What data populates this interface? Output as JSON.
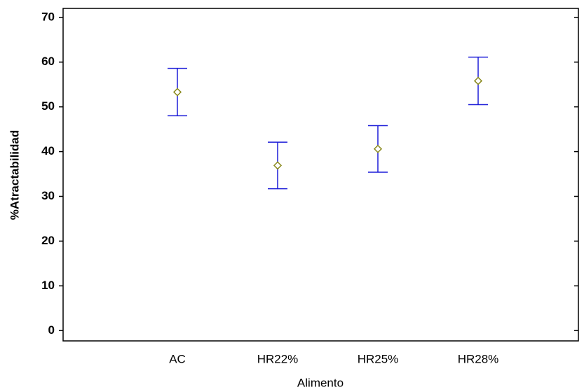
{
  "chart_data": {
    "type": "errorbar",
    "x_label": "Alimento",
    "y_label": "%Atractabilidad",
    "categories": [
      "AC",
      "HR22%",
      "HR25%",
      "HR28%"
    ],
    "values": [
      53.3,
      36.9,
      40.6,
      55.8
    ],
    "errors": [
      5.3,
      5.2,
      5.2,
      5.3
    ],
    "bar_color": "#1c1cd8",
    "marker_color": "#8a8a1e",
    "ylim": [
      -2.3,
      72
    ],
    "yticks": [
      0,
      10,
      20,
      30,
      40,
      50,
      60,
      70
    ]
  }
}
